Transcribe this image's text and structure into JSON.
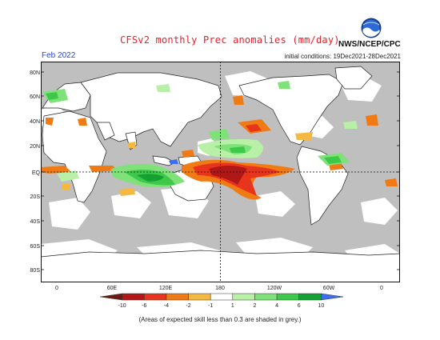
{
  "header": {
    "title": "CFSv2 monthly Prec anomalies (mm/day)",
    "org": "NWS/NCEP/CPC",
    "logo_text": "noaa",
    "period": "Feb 2022",
    "initial_conditions": "initial conditions: 19Dec2021-28Dec2021"
  },
  "map": {
    "lat_labels": [
      "80N",
      "60N",
      "40N",
      "20N",
      "EQ",
      "20S",
      "40S",
      "60S",
      "80S"
    ],
    "lon_labels": [
      "0",
      "60E",
      "120E",
      "180",
      "120W",
      "60W",
      "0"
    ],
    "skill_mask_color": "#bfbfbf",
    "land_color": "#ffffff",
    "coast_color": "#222222"
  },
  "colorbar": {
    "labels": [
      "-10",
      "-6",
      "-4",
      "-2",
      "-1",
      "1",
      "2",
      "4",
      "6",
      "10"
    ],
    "colors": [
      "#6b1a12",
      "#b01818",
      "#e8341c",
      "#f07a14",
      "#f5b840",
      "#ffffff",
      "#b8f0a8",
      "#7ee278",
      "#3ec84a",
      "#14a032",
      "#3e6ef0"
    ]
  },
  "footnote": "(Areas of expected skill less than 0.3 are shaded in grey.)"
}
